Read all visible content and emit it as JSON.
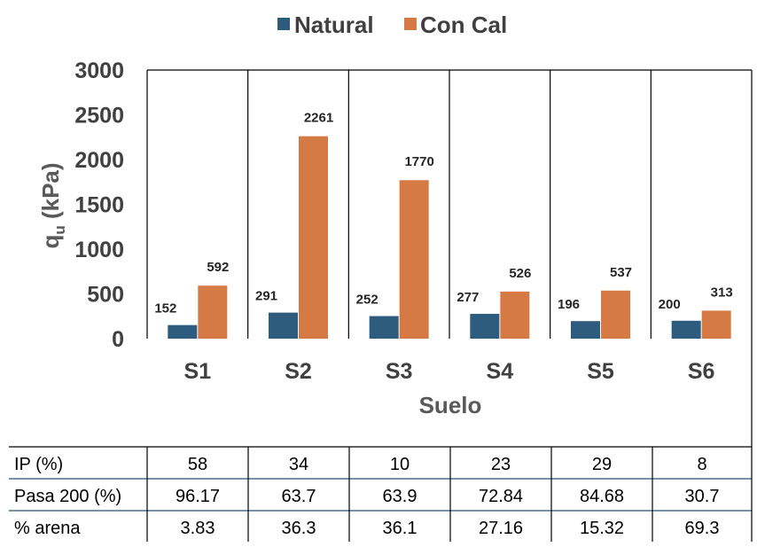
{
  "chart_data": {
    "type": "bar",
    "categories": [
      "S1",
      "S2",
      "S3",
      "S4",
      "S5",
      "S6"
    ],
    "series": [
      {
        "name": "Natural",
        "color": "#2e5c7e",
        "values": [
          152,
          291,
          252,
          277,
          196,
          200
        ]
      },
      {
        "name": "Con Cal",
        "color": "#d67a45",
        "values": [
          592,
          2261,
          1770,
          526,
          537,
          313
        ]
      }
    ],
    "data_labels": {
      "Natural": [
        "152",
        "291",
        "252",
        "277",
        "196",
        "200"
      ],
      "Con Cal": [
        "592",
        "2261",
        "1770",
        "526",
        "537",
        "313"
      ]
    },
    "ylabel": "q",
    "ylabel_sub": "u",
    "ylabel_unit": " (kPa)",
    "xlabel": "Suelo",
    "ylim": [
      0,
      3000
    ],
    "yticks": [
      "0",
      "500",
      "1000",
      "1500",
      "2000",
      "2500",
      "3000"
    ],
    "ytick_values": [
      0,
      500,
      1000,
      1500,
      2000,
      2500,
      3000
    ],
    "grid": "vertical-category-separators",
    "legend_position": "top-center"
  },
  "table": {
    "rows": [
      {
        "label": "IP (%)",
        "values": [
          "58",
          "34",
          "10",
          "23",
          "29",
          "8"
        ]
      },
      {
        "label": "Pasa 200 (%)",
        "values": [
          "96.17",
          "63.7",
          "63.9",
          "72.84",
          "84.68",
          "30.7"
        ]
      },
      {
        "label": "% arena",
        "values": [
          "3.83",
          "36.3",
          "36.1",
          "27.16",
          "15.32",
          "69.3"
        ]
      }
    ]
  }
}
